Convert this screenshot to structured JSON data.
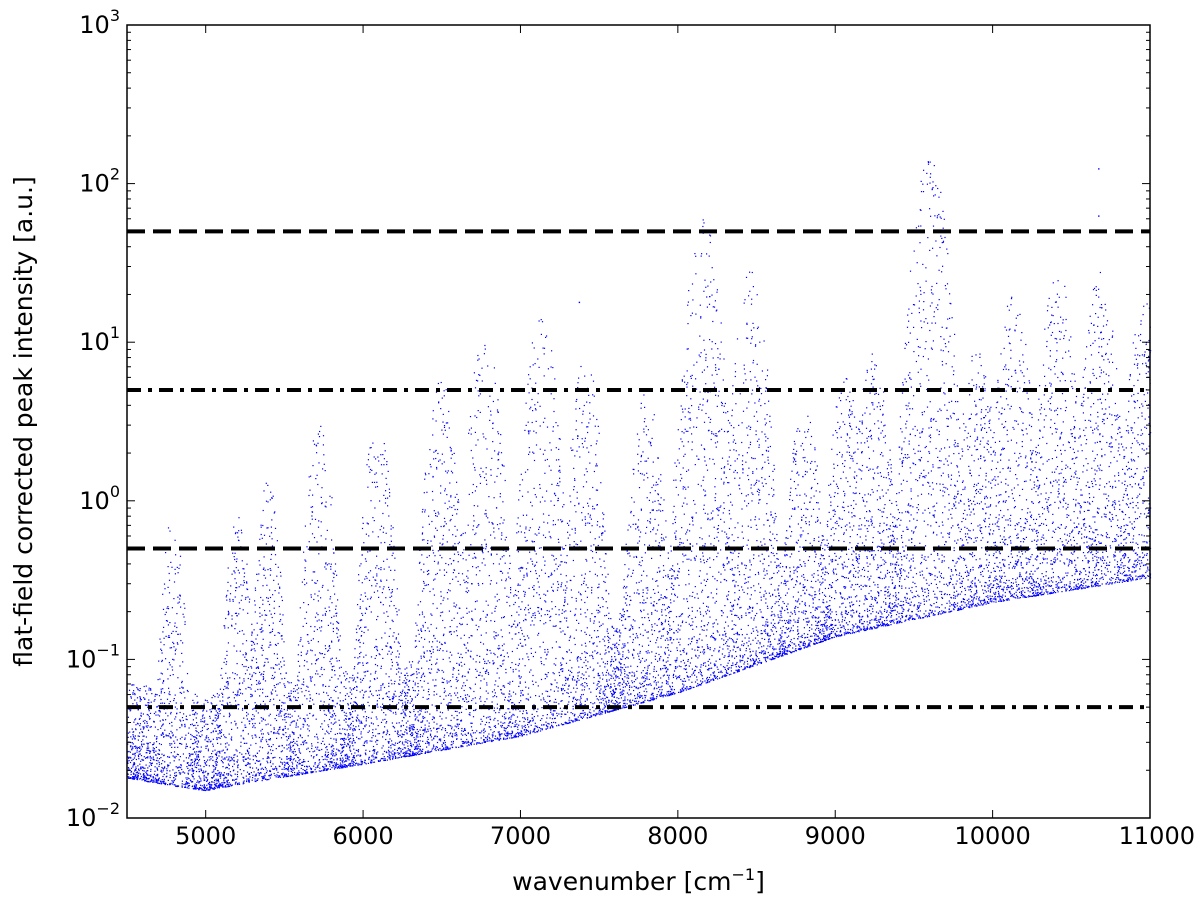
{
  "chart_data": {
    "type": "scatter",
    "title": "",
    "xlabel": "wavenumber [cm",
    "xlabel_unit_sup": "−1",
    "xlabel_close": "]",
    "ylabel": "flat-field corrected peak intensity [a.u.]",
    "xlim": [
      4500,
      11000
    ],
    "ylim": [
      0.01,
      1000
    ],
    "yscale": "log",
    "grid": false,
    "legend": "none",
    "x_ticks": [
      5000,
      6000,
      7000,
      8000,
      9000,
      10000,
      11000
    ],
    "x_tick_labels": [
      "5000",
      "6000",
      "7000",
      "8000",
      "9000",
      "10000",
      "11000"
    ],
    "y_ticks": [
      0.01,
      0.1,
      1,
      10,
      100,
      1000
    ],
    "y_tick_labels": [
      {
        "base": "10",
        "exp": "−2"
      },
      {
        "base": "10",
        "exp": "−1"
      },
      {
        "base": "10",
        "exp": "0"
      },
      {
        "base": "10",
        "exp": "1"
      },
      {
        "base": "10",
        "exp": "2"
      },
      {
        "base": "10",
        "exp": "3"
      }
    ],
    "point_color": "#0000ff",
    "lower_envelope": [
      [
        4500,
        0.018
      ],
      [
        4800,
        0.016
      ],
      [
        5000,
        0.015
      ],
      [
        5300,
        0.017
      ],
      [
        6000,
        0.022
      ],
      [
        7000,
        0.033
      ],
      [
        8000,
        0.062
      ],
      [
        9000,
        0.14
      ],
      [
        10000,
        0.23
      ],
      [
        11000,
        0.33
      ]
    ],
    "peak_envelopes": [
      {
        "center": 4790,
        "width": 70,
        "peak": 0.9
      },
      {
        "center": 5200,
        "width": 80,
        "peak": 0.8
      },
      {
        "center": 5390,
        "width": 80,
        "peak": 1.4
      },
      {
        "center": 5720,
        "width": 85,
        "peak": 3.2
      },
      {
        "center": 6090,
        "width": 90,
        "peak": 3.6
      },
      {
        "center": 6490,
        "width": 95,
        "peak": 6.0
      },
      {
        "center": 6770,
        "width": 100,
        "peak": 11.5
      },
      {
        "center": 7130,
        "width": 100,
        "peak": 16.0
      },
      {
        "center": 7410,
        "width": 90,
        "peak": 9.0
      },
      {
        "center": 7800,
        "width": 100,
        "peak": 5.0
      },
      {
        "center": 8160,
        "width": 110,
        "peak": 60.0
      },
      {
        "center": 8460,
        "width": 100,
        "peak": 29.0
      },
      {
        "center": 8800,
        "width": 100,
        "peak": 4.0
      },
      {
        "center": 9060,
        "width": 100,
        "peak": 6.0
      },
      {
        "center": 9240,
        "width": 100,
        "peak": 9.0
      },
      {
        "center": 9600,
        "width": 110,
        "peak": 150.0
      },
      {
        "center": 9900,
        "width": 100,
        "peak": 10.0
      },
      {
        "center": 10130,
        "width": 100,
        "peak": 21.0
      },
      {
        "center": 10410,
        "width": 100,
        "peak": 30.0
      },
      {
        "center": 10680,
        "width": 100,
        "peak": 29.0
      },
      {
        "center": 10960,
        "width": 100,
        "peak": 19.0
      }
    ],
    "outliers": [
      [
        10670,
        125
      ],
      [
        10670,
        63
      ],
      [
        7370,
        18
      ]
    ],
    "reference_lines": [
      {
        "y": 50,
        "style": "dashed"
      },
      {
        "y": 5,
        "style": "dashdot"
      },
      {
        "y": 0.5,
        "style": "dashed"
      },
      {
        "y": 0.05,
        "style": "dashdot"
      }
    ]
  }
}
